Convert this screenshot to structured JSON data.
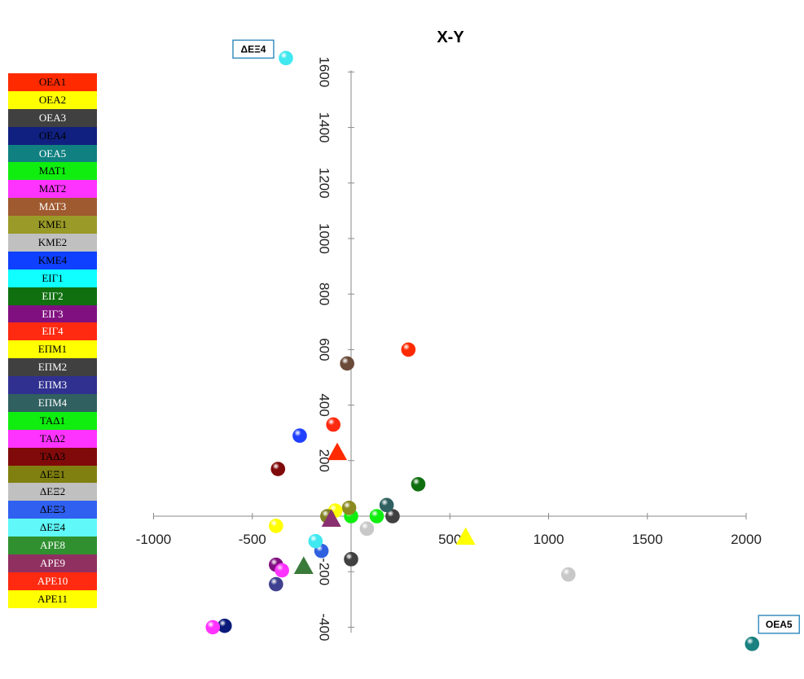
{
  "chart_data": {
    "type": "scatter",
    "title": "X-Y",
    "xlim": [
      -1000,
      2000
    ],
    "ylim": [
      -450,
      1620
    ],
    "x_ticks": [
      -1000,
      -500,
      0,
      500,
      1000,
      1500,
      2000
    ],
    "x_tick_labels": [
      "-1000",
      "-500",
      "",
      "500",
      "1000",
      "1500",
      "2000"
    ],
    "y_ticks": [
      -400,
      -200,
      200,
      400,
      600,
      800,
      1000,
      1200,
      1400,
      1600
    ],
    "y_tick_labels": [
      "-400",
      "-200",
      "200",
      "400",
      "600",
      "800",
      "1000",
      "1200",
      "1400",
      "1600"
    ],
    "legend_placement": "left",
    "series": [
      {
        "name": "OEA1",
        "color": "#ff2a00",
        "x": 290,
        "y": 600,
        "marker": "sphere"
      },
      {
        "name": "OEA2",
        "color": "#ffff00",
        "x": -380,
        "y": -35,
        "marker": "sphere"
      },
      {
        "name": "OEA3",
        "color": "#404040",
        "x": 0,
        "y": -155,
        "marker": "sphere"
      },
      {
        "name": "OEA4",
        "color": "#0a1a7a",
        "x": -640,
        "y": -395,
        "marker": "sphere"
      },
      {
        "name": "OEA5",
        "color": "#1a8080",
        "x": 2030,
        "y": -460,
        "marker": "sphere"
      },
      {
        "name": "ΜΔΤ1",
        "color": "#10ee10",
        "x": 0,
        "y": 0,
        "marker": "sphere"
      },
      {
        "name": "ΜΔΤ2",
        "color": "#ff33ff",
        "x": -700,
        "y": -400,
        "marker": "sphere"
      },
      {
        "name": "ΜΔΤ3",
        "color": "#6b4a3a",
        "x": -20,
        "y": 550,
        "marker": "sphere"
      },
      {
        "name": "KME1",
        "color": "#8a8a20",
        "x": -10,
        "y": 30,
        "marker": "sphere"
      },
      {
        "name": "KME2",
        "color": "#c8c8c8",
        "x": 1100,
        "y": -210,
        "marker": "sphere"
      },
      {
        "name": "KME4",
        "color": "#2040ff",
        "x": -260,
        "y": 290,
        "marker": "sphere"
      },
      {
        "name": "ΕΙΓ1",
        "color": "#40e8f0",
        "x": -330,
        "y": 1650,
        "marker": "sphere",
        "callout": "ΔΕΞ4"
      },
      {
        "name": "ΕΙΓ2",
        "color": "#107010",
        "x": 340,
        "y": 115,
        "marker": "sphere"
      },
      {
        "name": "ΕΙΓ3",
        "color": "#801080",
        "x": -380,
        "y": -175,
        "marker": "sphere"
      },
      {
        "name": "ΕΙΓ4",
        "color": "#ff2a10",
        "x": -90,
        "y": 330,
        "marker": "sphere"
      },
      {
        "name": "ΕΠΜ1",
        "color": "#ffff00",
        "x": -80,
        "y": 20,
        "marker": "sphere"
      },
      {
        "name": "ΕΠΜ2",
        "color": "#404040",
        "x": 210,
        "y": 0,
        "marker": "sphere"
      },
      {
        "name": "ΕΠΜ3",
        "color": "#404090",
        "x": -380,
        "y": -245,
        "marker": "sphere"
      },
      {
        "name": "ΕΠΜ4",
        "color": "#306060",
        "x": 180,
        "y": 40,
        "marker": "sphere"
      },
      {
        "name": "ΤΑΔ1",
        "color": "#10ee10",
        "x": 130,
        "y": 0,
        "marker": "sphere"
      },
      {
        "name": "ΤΑΔ2",
        "color": "#ff33ff",
        "x": -350,
        "y": -195,
        "marker": "sphere"
      },
      {
        "name": "ΤΑΔ3",
        "color": "#800a0a",
        "x": -370,
        "y": 170,
        "marker": "sphere"
      },
      {
        "name": "ΔΕΞ1",
        "color": "#808020",
        "x": -120,
        "y": 0,
        "marker": "sphere"
      },
      {
        "name": "ΔΕΞ2",
        "color": "#c8c8c8",
        "x": 80,
        "y": -45,
        "marker": "sphere"
      },
      {
        "name": "ΔΕΞ3",
        "color": "#3060e0",
        "x": -150,
        "y": -125,
        "marker": "sphere"
      },
      {
        "name": "ΔΕΞ4",
        "color": "#40e8f0",
        "x": -180,
        "y": -90,
        "marker": "sphere"
      },
      {
        "name": "APE8",
        "color": "#3a7a3a",
        "x": -240,
        "y": -180,
        "marker": "triangle"
      },
      {
        "name": "APE9",
        "color": "#8a3070",
        "x": -100,
        "y": -10,
        "marker": "triangle"
      },
      {
        "name": "APE10",
        "color": "#ff2a00",
        "x": -70,
        "y": 230,
        "marker": "triangle"
      },
      {
        "name": "APE11",
        "color": "#ffff00",
        "x": 580,
        "y": -75,
        "marker": "triangle"
      }
    ],
    "callouts": [
      {
        "text": "ΔΕΞ4",
        "x": -330,
        "y": 1650
      },
      {
        "text": "OEA5",
        "x": 2030,
        "y": -460
      }
    ],
    "legend": [
      {
        "label": "OEA1",
        "color": "#ff2a00",
        "dark_text": true
      },
      {
        "label": "OEA2",
        "color": "#ffff00",
        "dark_text": true
      },
      {
        "label": "OEA3",
        "color": "#404040",
        "dark_text": false
      },
      {
        "label": "OEA4",
        "color": "#102080",
        "dark_text": true
      },
      {
        "label": "OEA5",
        "color": "#108080",
        "dark_text": false
      },
      {
        "label": "ΜΔΤ1",
        "color": "#10ee10",
        "dark_text": true
      },
      {
        "label": "ΜΔΤ2",
        "color": "#ff33ff",
        "dark_text": true
      },
      {
        "label": "ΜΔΤ3",
        "color": "#a05a30",
        "dark_text": false
      },
      {
        "label": "KME1",
        "color": "#9a9a28",
        "dark_text": true
      },
      {
        "label": "KME2",
        "color": "#c0c0c0",
        "dark_text": true
      },
      {
        "label": "KME4",
        "color": "#1040ff",
        "dark_text": true
      },
      {
        "label": "ΕΙΓ1",
        "color": "#10ffff",
        "dark_text": true
      },
      {
        "label": "ΕΙΓ2",
        "color": "#107010",
        "dark_text": false
      },
      {
        "label": "ΕΙΓ3",
        "color": "#801080",
        "dark_text": false
      },
      {
        "label": "ΕΙΓ4",
        "color": "#ff2a10",
        "dark_text": false
      },
      {
        "label": "ΕΠΜ1",
        "color": "#ffff00",
        "dark_text": true
      },
      {
        "label": "ΕΠΜ2",
        "color": "#404040",
        "dark_text": false
      },
      {
        "label": "ΕΠΜ3",
        "color": "#303090",
        "dark_text": false
      },
      {
        "label": "ΕΠΜ4",
        "color": "#306060",
        "dark_text": false
      },
      {
        "label": "ΤΑΔ1",
        "color": "#10ee10",
        "dark_text": true
      },
      {
        "label": "ΤΑΔ2",
        "color": "#ff33ff",
        "dark_text": true
      },
      {
        "label": "ΤΑΔ3",
        "color": "#800a0a",
        "dark_text": true
      },
      {
        "label": "ΔΕΞ1",
        "color": "#808010",
        "dark_text": true
      },
      {
        "label": "ΔΕΞ2",
        "color": "#c0c0c0",
        "dark_text": true
      },
      {
        "label": "ΔΕΞ3",
        "color": "#3060f0",
        "dark_text": true
      },
      {
        "label": "ΔΕΞ4",
        "color": "#60f8f8",
        "dark_text": true
      },
      {
        "label": "APE8",
        "color": "#309030",
        "dark_text": false
      },
      {
        "label": "APE9",
        "color": "#903060",
        "dark_text": false
      },
      {
        "label": "APE10",
        "color": "#ff2a10",
        "dark_text": false
      },
      {
        "label": "APE11",
        "color": "#ffff00",
        "dark_text": true
      }
    ]
  }
}
